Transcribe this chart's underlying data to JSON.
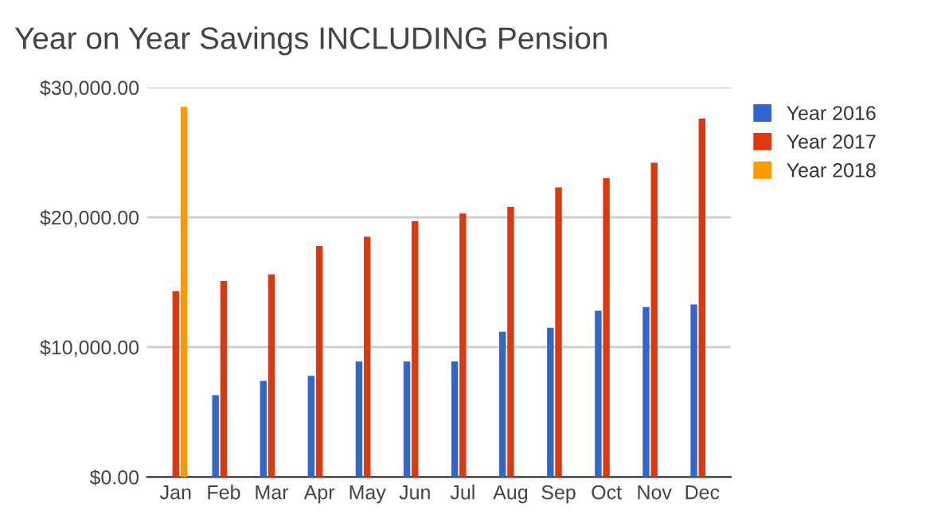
{
  "chart_data": {
    "type": "bar",
    "title": "Year on Year Savings INCLUDING Pension",
    "categories": [
      "Jan",
      "Feb",
      "Mar",
      "Apr",
      "May",
      "Jun",
      "Jul",
      "Aug",
      "Sep",
      "Oct",
      "Nov",
      "Dec"
    ],
    "series": [
      {
        "name": "Year 2016",
        "color": "#3366cc",
        "values": [
          null,
          6300,
          7400,
          7800,
          8900,
          8900,
          8900,
          11200,
          11500,
          12800,
          13100,
          13300
        ]
      },
      {
        "name": "Year 2017",
        "color": "#dc3912",
        "values": [
          14300,
          15100,
          15600,
          17800,
          18500,
          19700,
          20300,
          20800,
          22300,
          23000,
          24200,
          27600
        ]
      },
      {
        "name": "Year 2018",
        "color": "#ff9900",
        "values": [
          28500,
          null,
          null,
          null,
          null,
          null,
          null,
          null,
          null,
          null,
          null,
          null
        ]
      }
    ],
    "ylim": [
      0,
      30000
    ],
    "yticks": [
      {
        "value": 0,
        "label": "$0.00"
      },
      {
        "value": 10000,
        "label": "$10,000.00"
      },
      {
        "value": 20000,
        "label": "$20,000.00"
      },
      {
        "value": 30000,
        "label": "$30,000.00"
      }
    ],
    "grid": "y",
    "legend": "right"
  }
}
